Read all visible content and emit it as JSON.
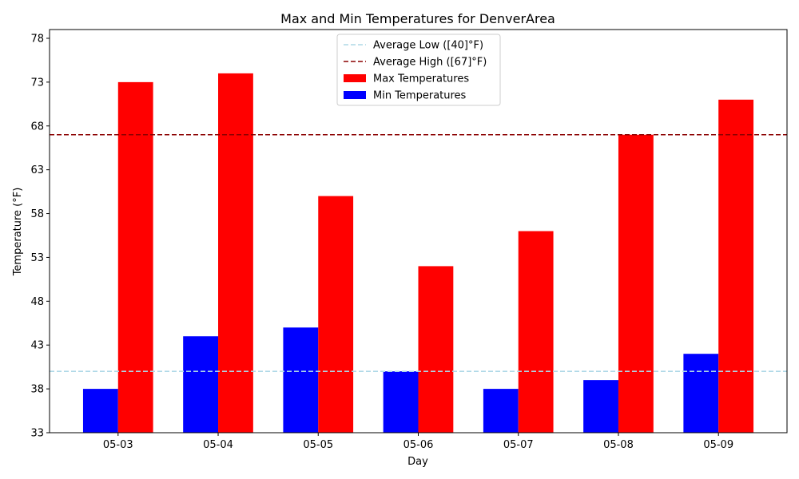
{
  "chart_data": {
    "type": "bar",
    "title": "Max and Min Temperatures for DenverArea",
    "xlabel": "Day",
    "ylabel": "Temperature (°F)",
    "ylim": [
      33,
      79
    ],
    "yticks": [
      33,
      38,
      43,
      48,
      53,
      58,
      63,
      68,
      73,
      78
    ],
    "categories": [
      "05-03",
      "05-04",
      "05-05",
      "05-06",
      "05-07",
      "05-08",
      "05-09"
    ],
    "series": [
      {
        "name": "Min Temperatures",
        "color": "#0000ff",
        "values": [
          38,
          44,
          45,
          40,
          38,
          39,
          42
        ]
      },
      {
        "name": "Max Temperatures",
        "color": "#ff0000",
        "values": [
          73,
          74,
          60,
          52,
          56,
          67,
          71
        ]
      }
    ],
    "reference_lines": [
      {
        "name": "Average Low ([40]°F)",
        "value": 40,
        "color": "#add8e6",
        "style": "dashed"
      },
      {
        "name": "Average High ([67]°F)",
        "value": 67,
        "color": "#8b0000",
        "style": "dashed"
      }
    ],
    "legend": {
      "placement": "top-center",
      "entries": [
        {
          "label": "Average Low ([40]°F)",
          "kind": "line",
          "color": "#add8e6"
        },
        {
          "label": "Average High ([67]°F)",
          "kind": "line",
          "color": "#8b0000"
        },
        {
          "label": "Max Temperatures",
          "kind": "patch",
          "color": "#ff0000"
        },
        {
          "label": "Min Temperatures",
          "kind": "patch",
          "color": "#0000ff"
        }
      ]
    },
    "grid": false
  }
}
